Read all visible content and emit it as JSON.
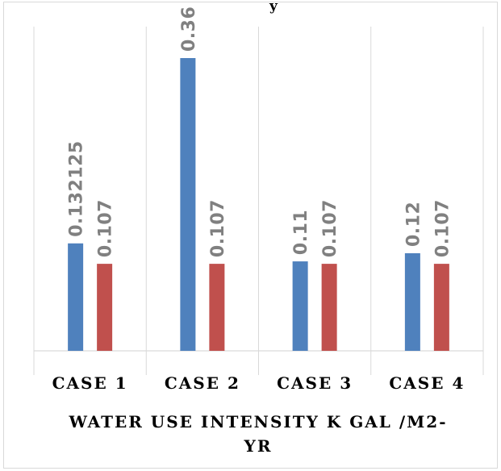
{
  "header": {
    "fragment": "y"
  },
  "chart_data": {
    "type": "bar",
    "categories": [
      "CASE 1",
      "CASE 2",
      "CASE 3",
      "CASE 4"
    ],
    "series": [
      {
        "values": [
          0.132125,
          0.36,
          0.11,
          0.12
        ],
        "labels": [
          "0.132125",
          "0.36",
          "0.11",
          "0.12"
        ],
        "color": "#4f81bd"
      },
      {
        "values": [
          0.107,
          0.107,
          0.107,
          0.107
        ],
        "labels": [
          "0.107",
          "0.107",
          "0.107",
          "0.107"
        ],
        "color": "#c0504d"
      }
    ],
    "xlabel": "WATER USE INTENSITY K GAL /M2-YR",
    "xlabel_lines": [
      "WATER USE INTENSITY K GAL /M2-",
      "YR"
    ],
    "ylim": [
      0,
      0.4
    ],
    "grid": "vertical category separators",
    "legend": "none",
    "data_labels": "rotated vertical above bars"
  }
}
